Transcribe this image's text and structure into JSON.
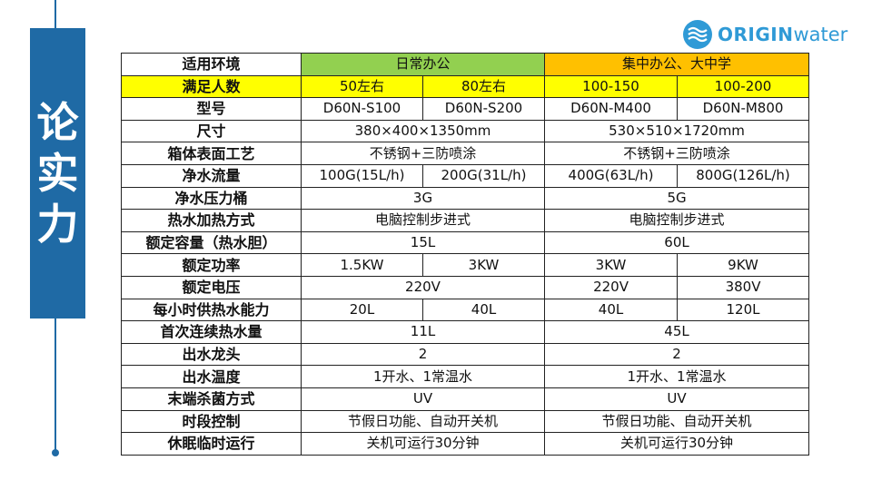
{
  "title": [
    "论",
    "实",
    "力"
  ],
  "logo": {
    "bold": "ORIGIN",
    "light": "water",
    "color": "#2f9ad6"
  },
  "colors": {
    "accent": "#1f6aa5",
    "green": "#92d050",
    "orange": "#ffc000",
    "yellow": "#ffff00"
  },
  "table": {
    "rows": [
      {
        "label": "适用环境",
        "cells": [
          {
            "text": "日常办公",
            "span": 2,
            "bg": "g"
          },
          {
            "text": "集中办公、大中学",
            "span": 2,
            "bg": "o"
          }
        ]
      },
      {
        "label": "满足人数",
        "cells": [
          {
            "text": "50左右"
          },
          {
            "text": "80左右"
          },
          {
            "text": "100-150"
          },
          {
            "text": "100-200"
          }
        ]
      },
      {
        "label": "型号",
        "cells": [
          {
            "text": "D60N-S100"
          },
          {
            "text": "D60N-S200"
          },
          {
            "text": "D60N-M400"
          },
          {
            "text": "D60N-M800"
          }
        ]
      },
      {
        "label": "尺寸",
        "cells": [
          {
            "text": "380×400×1350mm",
            "span": 2
          },
          {
            "text": "530×510×1720mm",
            "span": 2
          }
        ]
      },
      {
        "label": "箱体表面工艺",
        "cells": [
          {
            "text": "不锈钢+三防喷涂",
            "span": 2
          },
          {
            "text": "不锈钢+三防喷涂",
            "span": 2
          }
        ]
      },
      {
        "label": "净水流量",
        "cells": [
          {
            "text": "100G(15L/h)"
          },
          {
            "text": "200G(31L/h)"
          },
          {
            "text": "400G(63L/h)"
          },
          {
            "text": "800G(126L/h)"
          }
        ]
      },
      {
        "label": "净水压力桶",
        "cells": [
          {
            "text": "3G",
            "span": 2
          },
          {
            "text": "5G",
            "span": 2
          }
        ]
      },
      {
        "label": "热水加热方式",
        "cells": [
          {
            "text": "电脑控制步进式",
            "span": 2
          },
          {
            "text": "电脑控制步进式",
            "span": 2
          }
        ]
      },
      {
        "label": "额定容量（热水胆）",
        "cells": [
          {
            "text": "15L",
            "span": 2
          },
          {
            "text": "60L",
            "span": 2
          }
        ]
      },
      {
        "label": "额定功率",
        "cells": [
          {
            "text": "1.5KW"
          },
          {
            "text": "3KW"
          },
          {
            "text": "3KW"
          },
          {
            "text": "9KW"
          }
        ]
      },
      {
        "label": "额定电压",
        "cells": [
          {
            "text": "220V",
            "span": 2
          },
          {
            "text": "220V"
          },
          {
            "text": "380V"
          }
        ]
      },
      {
        "label": "每小时供热水能力",
        "cells": [
          {
            "text": "20L"
          },
          {
            "text": "40L"
          },
          {
            "text": "40L"
          },
          {
            "text": "120L"
          }
        ]
      },
      {
        "label": "首次连续热水量",
        "cells": [
          {
            "text": "11L",
            "span": 2
          },
          {
            "text": "45L",
            "span": 2
          }
        ]
      },
      {
        "label": "出水龙头",
        "cells": [
          {
            "text": "2",
            "span": 2
          },
          {
            "text": "2",
            "span": 2
          }
        ]
      },
      {
        "label": "出水温度",
        "cells": [
          {
            "text": "1开水、1常温水",
            "span": 2
          },
          {
            "text": "1开水、1常温水",
            "span": 2
          }
        ]
      },
      {
        "label": "末端杀菌方式",
        "cells": [
          {
            "text": "UV",
            "span": 2
          },
          {
            "text": "UV",
            "span": 2
          }
        ]
      },
      {
        "label": "时段控制",
        "cells": [
          {
            "text": "节假日功能、自动开关机",
            "span": 2
          },
          {
            "text": "节假日功能、自动开关机",
            "span": 2
          }
        ]
      },
      {
        "label": "休眠临时运行",
        "cells": [
          {
            "text": "关机可运行30分钟",
            "span": 2
          },
          {
            "text": "关机可运行30分钟",
            "span": 2
          }
        ]
      }
    ]
  }
}
